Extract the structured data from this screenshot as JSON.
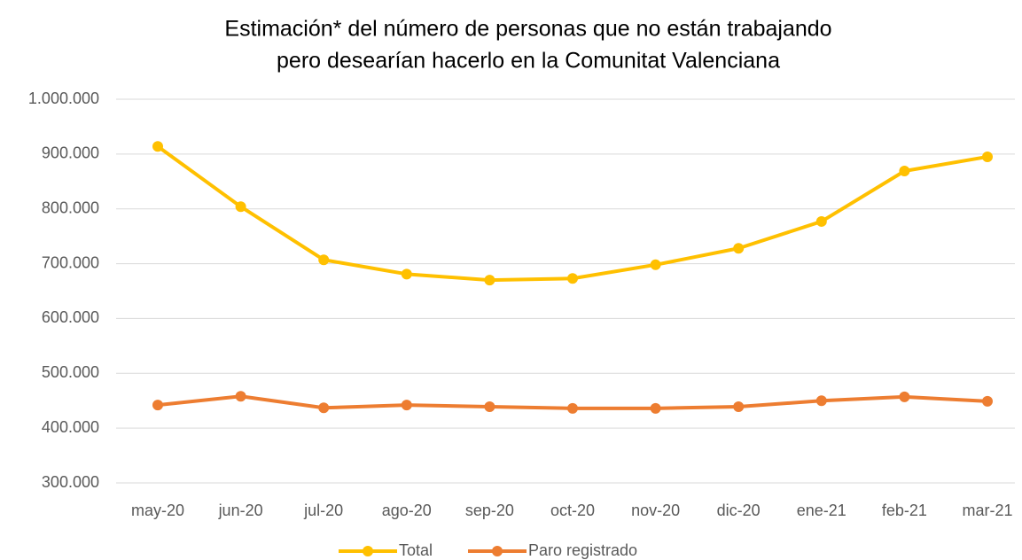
{
  "chart_data": {
    "type": "line",
    "title": [
      "Estimación* del número de personas que no están trabajando",
      "pero desearían hacerlo en la Comunitat Valenciana"
    ],
    "categories": [
      "may-20",
      "jun-20",
      "jul-20",
      "ago-20",
      "sep-20",
      "oct-20",
      "nov-20",
      "dic-20",
      "ene-21",
      "feb-21",
      "mar-21"
    ],
    "series": [
      {
        "name": "Total",
        "color": "#FFC000",
        "values": [
          914000,
          804000,
          707000,
          681000,
          670000,
          673000,
          698000,
          728000,
          777000,
          869000,
          895000
        ]
      },
      {
        "name": "Paro registrado",
        "color": "#ED7D31",
        "values": [
          442000,
          458000,
          437000,
          442000,
          439000,
          436000,
          436000,
          439000,
          450000,
          457000,
          449000
        ]
      }
    ],
    "ylim": [
      300000,
      1000000
    ],
    "yticks": [
      {
        "value": 300000,
        "label": "300.000"
      },
      {
        "value": 400000,
        "label": "400.000"
      },
      {
        "value": 500000,
        "label": "500.000"
      },
      {
        "value": 600000,
        "label": "600.000"
      },
      {
        "value": 700000,
        "label": "700.000"
      },
      {
        "value": 800000,
        "label": "800.000"
      },
      {
        "value": 900000,
        "label": "900.000"
      },
      {
        "value": 1000000,
        "label": "1.000.000"
      }
    ],
    "grid": true,
    "legend": "bottom"
  }
}
